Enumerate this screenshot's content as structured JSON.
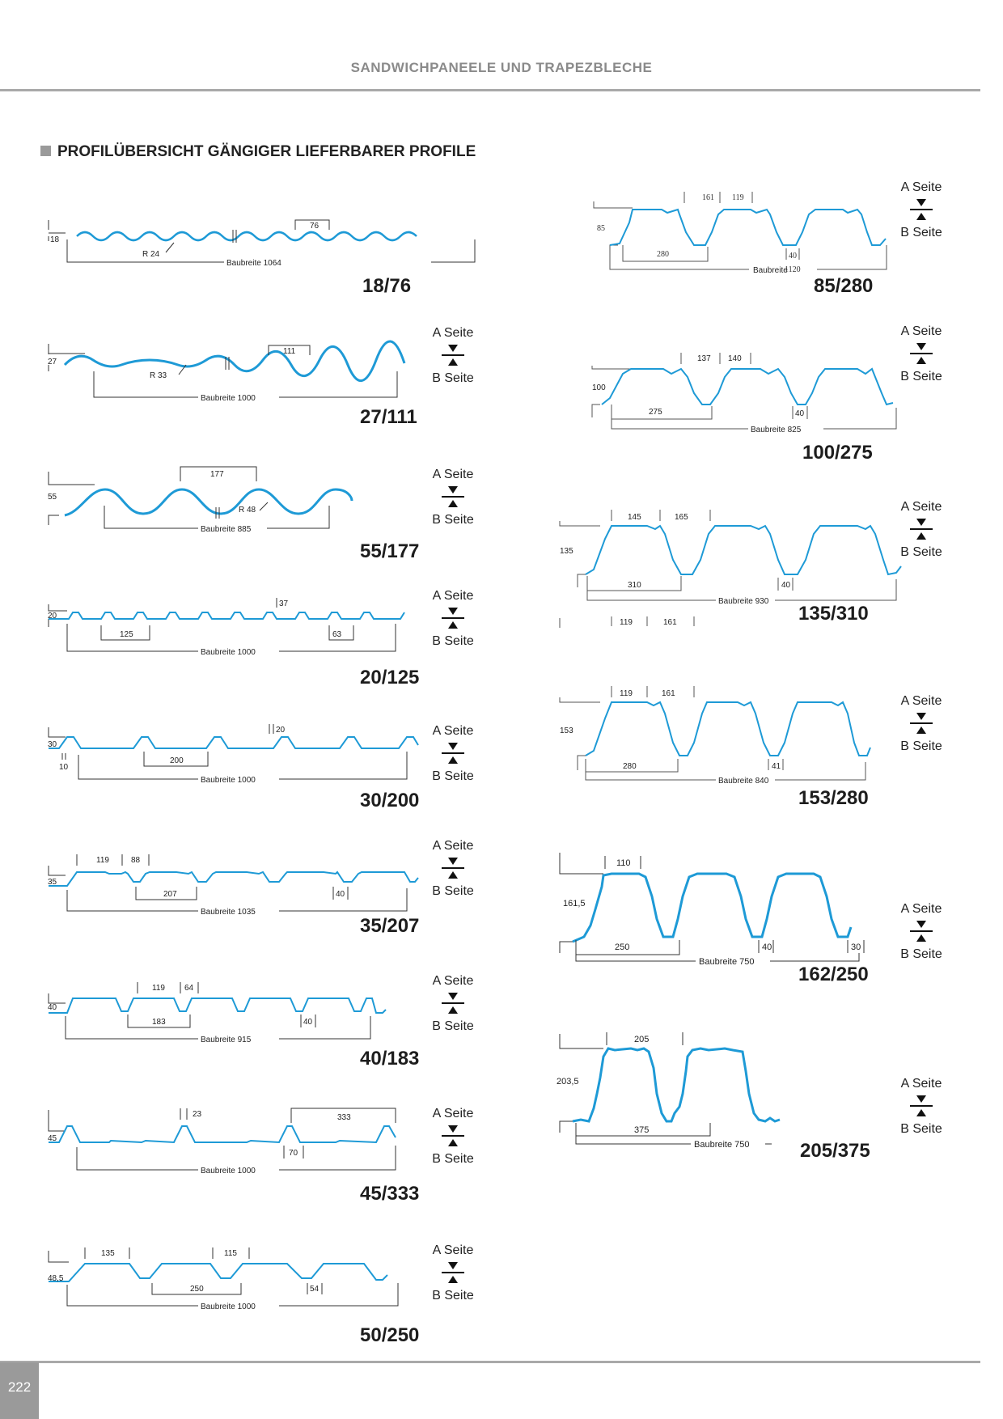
{
  "header": {
    "title": "SANDWICHPANEELE UND TRAPEZBLECHE"
  },
  "section": {
    "title": "PROFILÜBERSICHT GÄNGIGER LIEFERBARER PROFILE"
  },
  "sides": {
    "a": "A Seite",
    "b": "B Seite"
  },
  "profile_color": "#1e9ad6",
  "profiles": [
    {
      "name": "18/76",
      "dims": {
        "height": "18",
        "pitch": "76",
        "radius": "R 24",
        "width": "Baubreite 1064"
      }
    },
    {
      "name": "27/111",
      "dims": {
        "height": "27",
        "pitch": "111",
        "radius": "R 33",
        "width": "Baubreite 1000"
      }
    },
    {
      "name": "55/177",
      "dims": {
        "height": "55",
        "pitch": "177",
        "radius": "R 48",
        "width": "Baubreite 885"
      }
    },
    {
      "name": "20/125",
      "dims": {
        "height": "20",
        "rib": "37",
        "pitch": "125",
        "rib2": "63",
        "width": "Baubreite 1000"
      }
    },
    {
      "name": "30/200",
      "dims": {
        "height": "30",
        "rib": "20",
        "base": "10",
        "pitch": "200",
        "width": "Baubreite 1000"
      }
    },
    {
      "name": "35/207",
      "dims": {
        "top": "119",
        "rib": "88",
        "height": "35",
        "pitch": "207",
        "bottom": "40",
        "width": "Baubreite 1035"
      }
    },
    {
      "name": "40/183",
      "dims": {
        "top": "119",
        "rib": "64",
        "height": "40",
        "pitch": "183",
        "bottom": "40",
        "width": "Baubreite 915"
      }
    },
    {
      "name": "45/333",
      "dims": {
        "rib": "23",
        "span": "333",
        "height": "45",
        "bottom": "70",
        "width": "Baubreite 1000"
      }
    },
    {
      "name": "50/250",
      "dims": {
        "top": "135",
        "rib": "115",
        "height": "48,5",
        "pitch": "250",
        "bottom": "54",
        "width": "Baubreite 1000"
      }
    },
    {
      "name": "85/280",
      "dims": {
        "top": "161",
        "rib": "119",
        "height": "85",
        "pitch": "280",
        "bottom": "40",
        "width": "Baubreite",
        "width_value": "1120"
      }
    },
    {
      "name": "100/275",
      "dims": {
        "top": "137",
        "rib": "140",
        "height": "100",
        "pitch": "275",
        "bottom": "40",
        "width": "Baubreite 825"
      }
    },
    {
      "name": "135/310",
      "dims": {
        "top": "145",
        "rib": "165",
        "height": "135",
        "pitch": "310",
        "bottom": "40",
        "width": "Baubreite 930",
        "below_top": "119",
        "below_rib": "161"
      }
    },
    {
      "name": "153/280",
      "dims": {
        "top": "119",
        "rib": "161",
        "height": "153",
        "pitch": "280",
        "bottom": "41",
        "width": "Baubreite 840"
      }
    },
    {
      "name": "162/250",
      "dims": {
        "top": "110",
        "height": "161,5",
        "pitch": "250",
        "bottom": "40",
        "edge": "30",
        "width": "Baubreite 750"
      }
    },
    {
      "name": "205/375",
      "dims": {
        "top": "205",
        "height": "203,5",
        "pitch": "375",
        "width": "Baubreite 750"
      }
    }
  ],
  "footer": {
    "page_number": "222"
  }
}
